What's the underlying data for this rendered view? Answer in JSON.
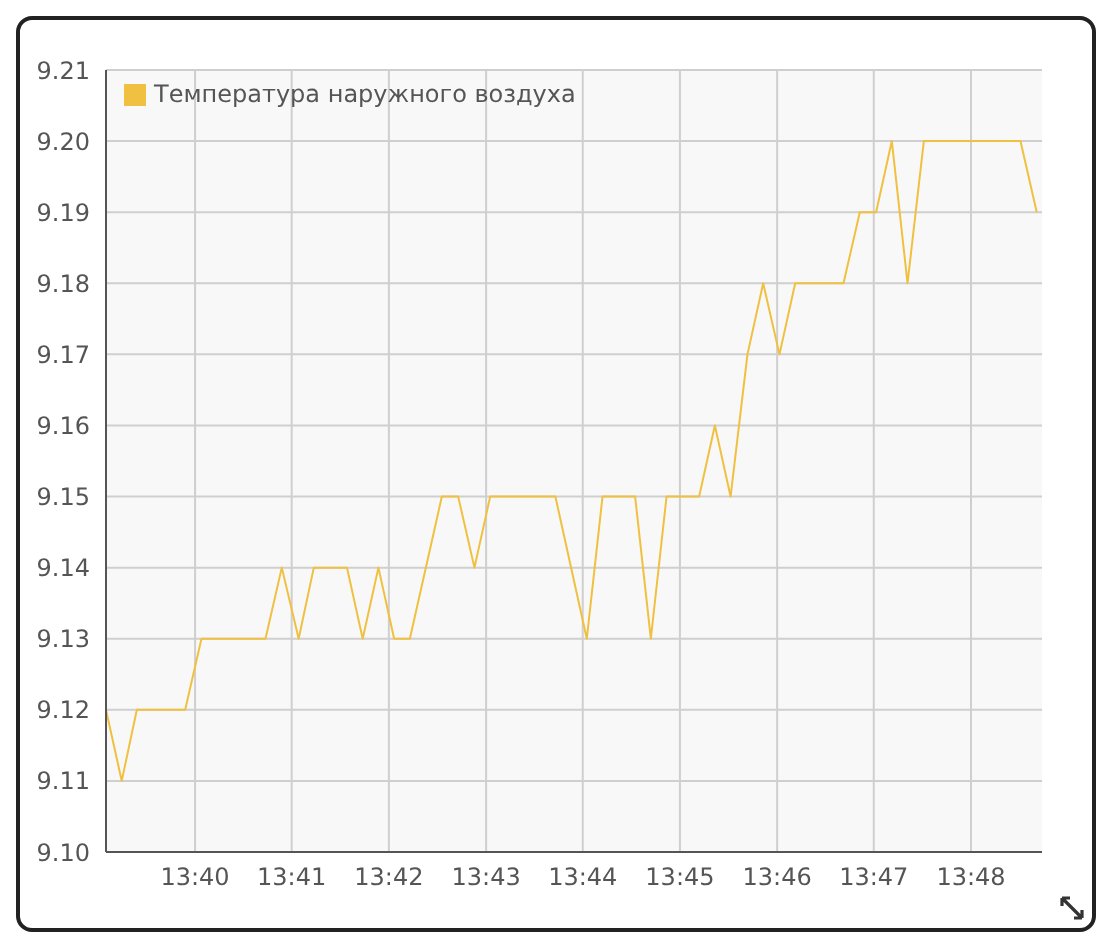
{
  "chart_data": {
    "type": "line",
    "x": [
      13.6514,
      13.6541,
      13.6567,
      13.665,
      13.6678,
      13.6788,
      13.6816,
      13.6845,
      13.6871,
      13.6928,
      13.6955,
      13.6982,
      13.7009,
      13.7036,
      13.7091,
      13.7119,
      13.7147,
      13.7174,
      13.7286,
      13.734,
      13.7367,
      13.7423,
      13.745,
      13.7477,
      13.7533,
      13.756,
      13.7587,
      13.7616,
      13.7643,
      13.7671,
      13.7698,
      13.7781,
      13.7809,
      13.7837,
      13.7864,
      13.7891,
      13.7919,
      13.8085,
      13.8113
    ],
    "series": [
      {
        "name": "Температура наружного воздуха",
        "color": "#f0c040",
        "values": [
          9.12,
          9.11,
          9.12,
          9.12,
          9.13,
          9.13,
          9.14,
          9.13,
          9.14,
          9.14,
          9.13,
          9.14,
          9.13,
          9.13,
          9.15,
          9.15,
          9.14,
          9.15,
          9.15,
          9.13,
          9.15,
          9.15,
          9.13,
          9.15,
          9.15,
          9.16,
          9.15,
          9.17,
          9.18,
          9.17,
          9.18,
          9.18,
          9.19,
          9.19,
          9.2,
          9.18,
          9.2,
          9.2,
          9.19
        ]
      }
    ],
    "xlim": [
      13.6514,
      13.8122
    ],
    "xticks": [
      {
        "value": 13.6667,
        "label": "13:40"
      },
      {
        "value": 13.6833,
        "label": "13:41"
      },
      {
        "value": 13.7,
        "label": "13:42"
      },
      {
        "value": 13.7167,
        "label": "13:43"
      },
      {
        "value": 13.7333,
        "label": "13:44"
      },
      {
        "value": 13.75,
        "label": "13:45"
      },
      {
        "value": 13.7667,
        "label": "13:46"
      },
      {
        "value": 13.7833,
        "label": "13:47"
      },
      {
        "value": 13.8,
        "label": "13:48"
      }
    ],
    "ylim": [
      9.1,
      9.21
    ],
    "yticks": [
      {
        "value": 9.1,
        "label": "9.10"
      },
      {
        "value": 9.11,
        "label": "9.11"
      },
      {
        "value": 9.12,
        "label": "9.12"
      },
      {
        "value": 9.13,
        "label": "9.13"
      },
      {
        "value": 9.14,
        "label": "9.14"
      },
      {
        "value": 9.15,
        "label": "9.15"
      },
      {
        "value": 9.16,
        "label": "9.16"
      },
      {
        "value": 9.17,
        "label": "9.17"
      },
      {
        "value": 9.18,
        "label": "9.18"
      },
      {
        "value": 9.19,
        "label": "9.19"
      },
      {
        "value": 9.2,
        "label": "9.20"
      },
      {
        "value": 9.21,
        "label": "9.21"
      }
    ],
    "grid": true,
    "legend": "top left"
  }
}
